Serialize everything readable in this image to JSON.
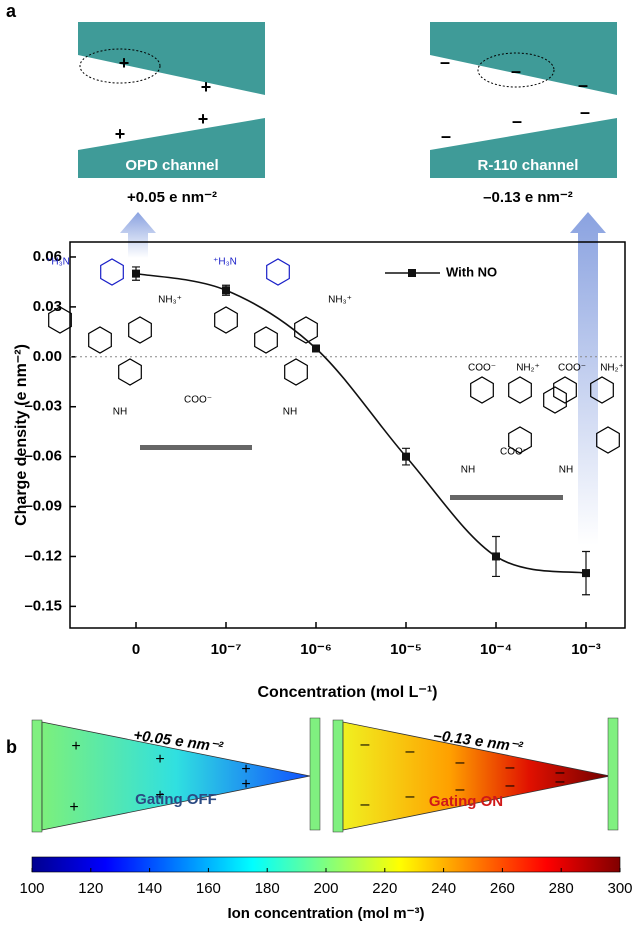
{
  "panels": [
    "a",
    "b"
  ],
  "channels": [
    {
      "label": "OPD channel",
      "charge": "+0.05 e nm⁻²",
      "signs": [
        "+",
        "+",
        "+",
        "+"
      ]
    },
    {
      "label": "R-110 channel",
      "charge": "–0.13 e nm⁻²",
      "signs": [
        "–",
        "–",
        "–",
        "–",
        "–",
        "–"
      ]
    }
  ],
  "chart_data": {
    "type": "line",
    "x_label": "Concentration (mol L⁻¹)",
    "y_label": "Charge density (e nm⁻²)",
    "categories": [
      "0",
      "10⁻⁷",
      "10⁻⁶",
      "10⁻⁵",
      "10⁻⁴",
      "10⁻³"
    ],
    "series": [
      {
        "name": "With NO",
        "color": "#111111",
        "values": [
          0.05,
          0.04,
          0.005,
          -0.06,
          -0.12,
          -0.13
        ],
        "errors": [
          0.004,
          0.003,
          0.001,
          0.005,
          0.012,
          0.013
        ]
      }
    ],
    "ylim": [
      -0.163,
      0.069
    ],
    "yticks": [
      0.06,
      0.03,
      {
        "value": 0,
        "label": "0.00"
      },
      {
        "value": -0.03,
        "label": "–0.03"
      },
      {
        "value": -0.06,
        "label": "–0.06"
      },
      {
        "value": -0.09,
        "label": "–0.09"
      },
      {
        "value": -0.12,
        "label": "–0.12"
      },
      {
        "value": -0.15,
        "label": "–0.15"
      }
    ],
    "legend": "top-right"
  },
  "structures": {
    "left": [
      "⁺H₃N",
      "NH₃⁺",
      "⁺H₃N",
      "NH₃⁺",
      "COO⁻",
      "NH",
      "NH"
    ],
    "right": [
      "COO⁻",
      "NH₂⁺",
      "COO⁻",
      "NH₂⁺",
      "COO⁻",
      "NH",
      "NH"
    ]
  },
  "panel_b": {
    "left": {
      "charge": "+0.05 e nm⁻²",
      "label": "Gating OFF",
      "signs": [
        "+",
        "+",
        "+",
        "+",
        "+",
        "+"
      ]
    },
    "right": {
      "charge": "–0.13 e nm⁻²",
      "label": "Gating ON",
      "signs": [
        "–",
        "–",
        "–",
        "–",
        "–",
        "–",
        "–",
        "–",
        "–",
        "–"
      ]
    }
  },
  "colorbar": {
    "range": [
      100,
      300
    ],
    "ticks": [
      100,
      120,
      140,
      160,
      180,
      200,
      220,
      240,
      260,
      280,
      300
    ],
    "label": "Ion concentration (mol m⁻³)"
  }
}
